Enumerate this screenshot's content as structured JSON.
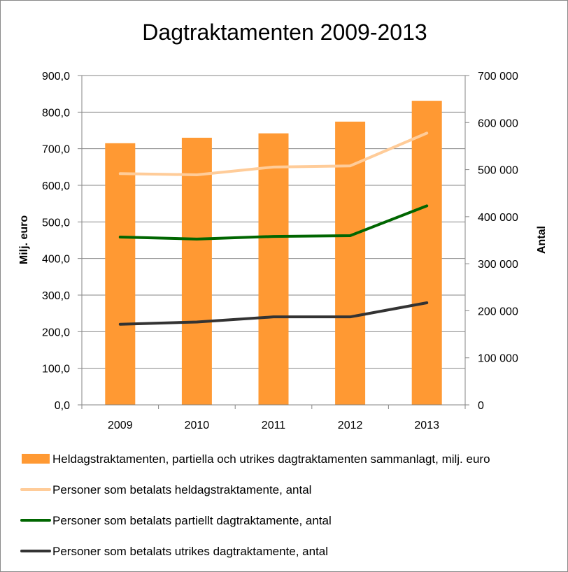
{
  "chart_data": {
    "type": "bar+line",
    "title": "Dagtraktamenten 2009-2013",
    "categories": [
      "2009",
      "2010",
      "2011",
      "2012",
      "2013"
    ],
    "y_left": {
      "label": "Milj. euro",
      "range": [
        0,
        900
      ],
      "ticks": [
        "0,0",
        "100,0",
        "200,0",
        "300,0",
        "400,0",
        "500,0",
        "600,0",
        "700,0",
        "800,0",
        "900,0"
      ]
    },
    "y_right": {
      "label": "Antal",
      "range": [
        0,
        700000
      ],
      "ticks": [
        "0",
        "100 000",
        "200 000",
        "300 000",
        "400 000",
        "500 000",
        "600 000",
        "700 000"
      ]
    },
    "grid": true,
    "legend_position": "bottom",
    "series": [
      {
        "name": "Heldagstraktamenten, partiella och utrikes dagtraktamenten sammanlagt, milj. euro",
        "type": "bar",
        "axis": "left",
        "color": "#FF9933",
        "values": [
          715,
          730,
          742,
          774,
          831
        ]
      },
      {
        "name": "Personer som betalats heldagstraktamente, antal",
        "type": "line",
        "axis": "right",
        "color": "#FFCC99",
        "values": [
          491500,
          489000,
          505500,
          508000,
          577600
        ]
      },
      {
        "name": "Personer som betalats partiellt dagtraktamente, antal",
        "type": "line",
        "axis": "right",
        "color": "#006600",
        "values": [
          356600,
          352500,
          358000,
          359600,
          423000
        ]
      },
      {
        "name": "Personer som betalats utrikes dagtraktamente, antal",
        "type": "line",
        "axis": "right",
        "color": "#333333",
        "values": [
          171300,
          176200,
          187000,
          187000,
          217000
        ]
      }
    ]
  }
}
